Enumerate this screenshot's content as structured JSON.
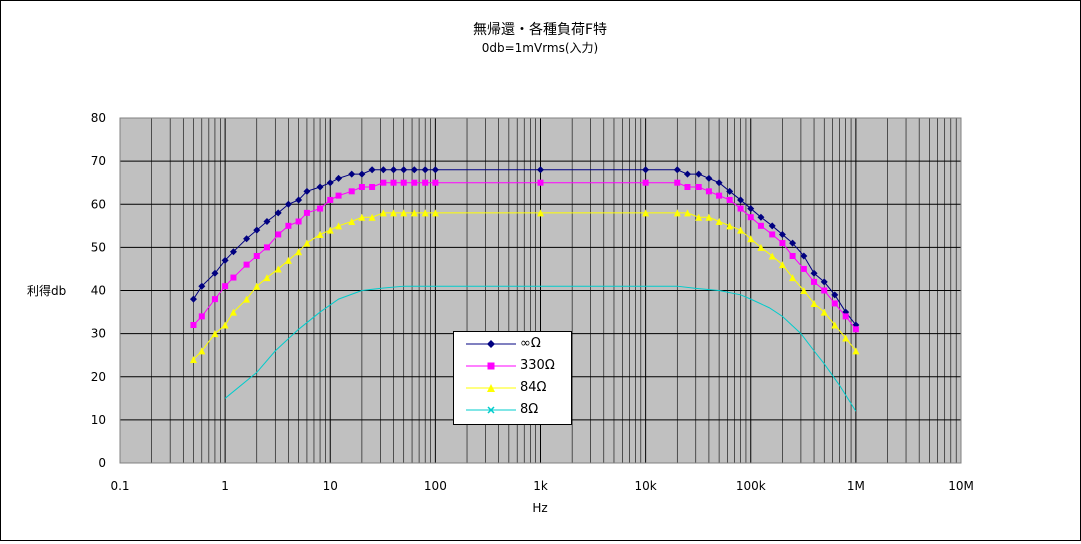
{
  "chart_data": {
    "type": "line",
    "title": "無帰還・各種負荷F特",
    "subtitle": "0db=1mVrms(入力)",
    "xlabel": "Hz",
    "ylabel": "利得db",
    "x_scale": "log",
    "xlim": [
      0.1,
      10000000
    ],
    "ylim": [
      0,
      80
    ],
    "x_tick_values": [
      0.1,
      1,
      10,
      100,
      1000,
      10000,
      100000,
      1000000,
      10000000
    ],
    "x_tick_labels": [
      "0.1",
      "1",
      "10",
      "100",
      "1k",
      "10k",
      "100k",
      "1M",
      "10M"
    ],
    "y_ticks": [
      0,
      10,
      20,
      30,
      40,
      50,
      60,
      70,
      80
    ],
    "grid": true,
    "legend_position": "center",
    "series": [
      {
        "name": "∞Ω",
        "color": "#000080",
        "marker": "diamond",
        "x": [
          0.5,
          0.6,
          0.8,
          1,
          1.2,
          1.6,
          2,
          2.5,
          3.2,
          4,
          5,
          6,
          8,
          10,
          12,
          16,
          20,
          25,
          32,
          40,
          50,
          63,
          80,
          100,
          1000,
          10000,
          20000,
          25000,
          32000,
          40000,
          50000,
          63000,
          80000,
          100000,
          125000,
          160000,
          200000,
          250000,
          320000,
          400000,
          500000,
          630000,
          800000,
          1000000
        ],
        "y": [
          38,
          41,
          44,
          47,
          49,
          52,
          54,
          56,
          58,
          60,
          61,
          63,
          64,
          65,
          66,
          67,
          67,
          68,
          68,
          68,
          68,
          68,
          68,
          68,
          68,
          68,
          68,
          67,
          67,
          66,
          65,
          63,
          61,
          59,
          57,
          55,
          53,
          51,
          48,
          44,
          42,
          39,
          35,
          32
        ]
      },
      {
        "name": "330Ω",
        "color": "#FF00FF",
        "marker": "square",
        "x": [
          0.5,
          0.6,
          0.8,
          1,
          1.2,
          1.6,
          2,
          2.5,
          3.2,
          4,
          5,
          6,
          8,
          10,
          12,
          16,
          20,
          25,
          32,
          40,
          50,
          63,
          80,
          100,
          1000,
          10000,
          20000,
          25000,
          32000,
          40000,
          50000,
          63000,
          80000,
          100000,
          125000,
          160000,
          200000,
          250000,
          320000,
          400000,
          500000,
          630000,
          800000,
          1000000
        ],
        "y": [
          32,
          34,
          38,
          41,
          43,
          46,
          48,
          50,
          53,
          55,
          56,
          58,
          59,
          61,
          62,
          63,
          64,
          64,
          65,
          65,
          65,
          65,
          65,
          65,
          65,
          65,
          65,
          64,
          64,
          63,
          62,
          61,
          59,
          57,
          55,
          53,
          51,
          48,
          45,
          42,
          40,
          37,
          34,
          31
        ]
      },
      {
        "name": "84Ω",
        "color": "#FFFF00",
        "marker": "triangle",
        "x": [
          0.5,
          0.6,
          0.8,
          1,
          1.2,
          1.6,
          2,
          2.5,
          3.2,
          4,
          5,
          6,
          8,
          10,
          12,
          16,
          20,
          25,
          32,
          40,
          50,
          63,
          80,
          100,
          1000,
          10000,
          20000,
          25000,
          32000,
          40000,
          50000,
          63000,
          80000,
          100000,
          125000,
          160000,
          200000,
          250000,
          320000,
          400000,
          500000,
          630000,
          800000,
          1000000
        ],
        "y": [
          24,
          26,
          30,
          32,
          35,
          38,
          41,
          43,
          45,
          47,
          49,
          51,
          53,
          54,
          55,
          56,
          57,
          57,
          58,
          58,
          58,
          58,
          58,
          58,
          58,
          58,
          58,
          58,
          57,
          57,
          56,
          55,
          54,
          52,
          50,
          48,
          46,
          43,
          40,
          37,
          35,
          32,
          29,
          26
        ]
      },
      {
        "name": "8Ω",
        "color": "#00CCCC",
        "marker": "cross",
        "x": [
          1,
          2,
          3,
          5,
          8,
          12,
          20,
          30,
          50,
          100,
          1000,
          10000,
          20000,
          30000,
          50000,
          80000,
          100000,
          150000,
          200000,
          300000,
          400000,
          500000,
          700000,
          1000000
        ],
        "y": [
          15,
          21,
          26,
          31,
          35,
          38,
          40,
          40.5,
          41,
          41,
          41,
          41,
          41,
          40.5,
          40,
          39,
          38,
          36,
          34,
          30,
          26,
          23,
          18,
          12
        ]
      }
    ]
  }
}
